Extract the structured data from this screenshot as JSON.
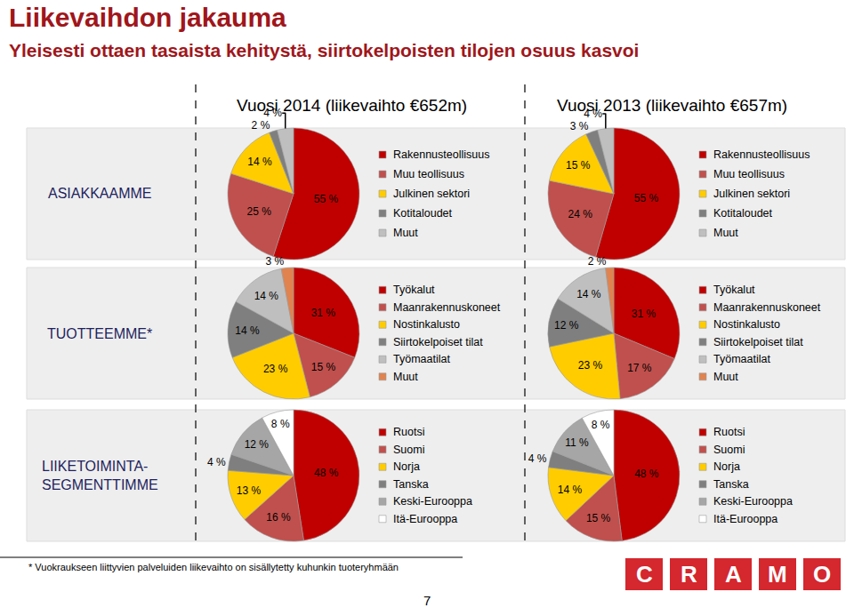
{
  "title": "Liikevaihdon jakauma",
  "subtitle": "Yleisesti ottaen tasaista kehitystä, siirtokelpoisten tilojen osuus kasvoi",
  "columns": [
    "Vuosi 2014 (liikevaihto €652m)",
    "Vuosi 2013 (liikevaihto €657m)"
  ],
  "row_labels": [
    [
      "ASIAKKAAMME"
    ],
    [
      "TUOTTEEMME*"
    ],
    [
      "LIIKETOIMINTA-",
      "SEGMENTTIMME"
    ]
  ],
  "footnote": "* Vuokraukseen liittyvien palveluiden liikevaihto on sisällytetty kuhunkin tuoteryhmään",
  "page": "7",
  "logo": "CRAMO",
  "chart_data": [
    {
      "type": "pie",
      "categories": [
        "Rakennusteollisuus",
        "Muu teollisuus",
        "Julkinen sektori",
        "Kotitaloudet",
        "Muut"
      ],
      "values": [
        55,
        25,
        14,
        2,
        4
      ],
      "value_labels": [
        "55 %",
        "25 %",
        "14 %",
        "2 %",
        "4 %"
      ],
      "colors": [
        "#C00000",
        "#C0504D",
        "#FFCC00",
        "#7F7F7F",
        "#BFBFBF"
      ],
      "data_labels": true,
      "legend": "right"
    },
    {
      "type": "pie",
      "categories": [
        "Rakennusteollisuus",
        "Muu teollisuus",
        "Julkinen sektori",
        "Kotitaloudet",
        "Muut"
      ],
      "values": [
        55,
        24,
        15,
        3,
        4
      ],
      "value_labels": [
        "55 %",
        "24 %",
        "15 %",
        "3 %",
        "4 %"
      ],
      "colors": [
        "#C00000",
        "#C0504D",
        "#FFCC00",
        "#7F7F7F",
        "#BFBFBF"
      ],
      "data_labels": true,
      "legend": "right"
    },
    {
      "type": "pie",
      "categories": [
        "Työkalut",
        "Maanrakennuskoneet",
        "Nostinkalusto",
        "Siirtokelpoiset tilat",
        "Työmaatilat",
        "Muut"
      ],
      "values": [
        31,
        15,
        23,
        14,
        14,
        3
      ],
      "value_labels": [
        "31 %",
        "15 %",
        "23 %",
        "14 %",
        "14 %",
        "3 %"
      ],
      "colors": [
        "#C00000",
        "#C0504D",
        "#FFCC00",
        "#7F7F7F",
        "#BFBFBF",
        "#E0834F"
      ],
      "data_labels": true,
      "legend": "right"
    },
    {
      "type": "pie",
      "categories": [
        "Työkalut",
        "Maanrakennuskoneet",
        "Nostinkalusto",
        "Siirtokelpoiset tilat",
        "Työmaatilat",
        "Muut"
      ],
      "values": [
        31,
        17,
        23,
        12,
        14,
        2
      ],
      "value_labels": [
        "31 %",
        "17 %",
        "23 %",
        "12 %",
        "14 %",
        "2 %"
      ],
      "colors": [
        "#C00000",
        "#C0504D",
        "#FFCC00",
        "#7F7F7F",
        "#BFBFBF",
        "#E0834F"
      ],
      "data_labels": true,
      "legend": "right"
    },
    {
      "type": "pie",
      "categories": [
        "Ruotsi",
        "Suomi",
        "Norja",
        "Tanska",
        "Keski-Eurooppa",
        "Itä-Eurooppa"
      ],
      "values": [
        48,
        16,
        13,
        4,
        12,
        8
      ],
      "value_labels": [
        "48 %",
        "16 %",
        "13 %",
        "4 %",
        "12 %",
        "8 %"
      ],
      "colors": [
        "#C00000",
        "#C0504D",
        "#FFCC00",
        "#7F7F7F",
        "#A6A6A6",
        "#FFFFFF"
      ],
      "data_labels": true,
      "legend": "right"
    },
    {
      "type": "pie",
      "categories": [
        "Ruotsi",
        "Suomi",
        "Norja",
        "Tanska",
        "Keski-Eurooppa",
        "Itä-Eurooppa"
      ],
      "values": [
        48,
        15,
        14,
        4,
        11,
        8
      ],
      "value_labels": [
        "48 %",
        "15 %",
        "14 %",
        "4 %",
        "11 %",
        "8 %"
      ],
      "colors": [
        "#C00000",
        "#C0504D",
        "#FFCC00",
        "#7F7F7F",
        "#A6A6A6",
        "#FFFFFF"
      ],
      "data_labels": true,
      "legend": "right"
    }
  ]
}
